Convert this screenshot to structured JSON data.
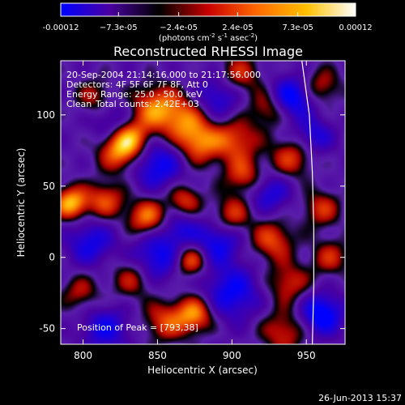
{
  "chart_data": {
    "type": "heatmap",
    "title": "Reconstructed RHESSI Image",
    "xlabel": "Heliocentric X (arcsec)",
    "ylabel": "Heliocentric Y (arcsec)",
    "xlim": [
      785,
      976
    ],
    "ylim": [
      -61,
      138
    ],
    "x_ticks": [
      800,
      850,
      900,
      950
    ],
    "y_ticks": [
      -50,
      0,
      50,
      100
    ],
    "colorbar": {
      "range": [
        -0.00012,
        0.00012
      ],
      "tick_labels": [
        "-0.00012",
        "−7.3e-05",
        "−2.4e-05",
        "2.4e-05",
        "7.3e-05",
        "0.00012"
      ],
      "tick_values": [
        -0.00012,
        -7.3e-05,
        -2.4e-05,
        2.4e-05,
        7.3e-05,
        0.00012
      ],
      "unit_base": "(photons cm",
      "unit_exp1": "-2",
      "unit_s": " s",
      "unit_exp2": "-1",
      "unit_asec": " asec",
      "unit_exp3": "-2",
      "unit_close": ")",
      "colors": [
        "#0000ff",
        "#4a00a0",
        "#000000",
        "#c80000",
        "#ff6a00",
        "#ffc000",
        "#ffffff"
      ]
    },
    "annotations": {
      "line1": "20-Sep-2004 21:14:16.000 to 21:17:56.000",
      "line2": "Detectors: 4F 5F 6F 7F 8F, Att 0",
      "line3": "Energy Range: 25.0 - 50.0 keV",
      "line4_a": "Clean",
      "line4_b": "Total counts: 2.42E+03",
      "peak": "Position of Peak = [793,38]"
    },
    "peak_position": [
      793,
      38
    ],
    "limb_curve": [
      [
        947,
        138
      ],
      [
        952,
        100
      ],
      [
        954,
        60
      ],
      [
        955,
        20
      ],
      [
        955,
        -20
      ],
      [
        954,
        -61
      ]
    ],
    "blobs": [
      {
        "x": 792,
        "y": 38,
        "v": 1.0,
        "s": 8
      },
      {
        "x": 825,
        "y": 75,
        "v": 0.85,
        "s": 10
      },
      {
        "x": 832,
        "y": 85,
        "v": 0.7,
        "s": 9
      },
      {
        "x": 848,
        "y": 105,
        "v": 0.75,
        "s": 11
      },
      {
        "x": 843,
        "y": 28,
        "v": 0.8,
        "s": 9
      },
      {
        "x": 815,
        "y": 40,
        "v": 0.65,
        "s": 9
      },
      {
        "x": 868,
        "y": 97,
        "v": 0.7,
        "s": 12
      },
      {
        "x": 878,
        "y": 80,
        "v": 0.7,
        "s": 10
      },
      {
        "x": 902,
        "y": 82,
        "v": 0.65,
        "s": 11
      },
      {
        "x": 905,
        "y": 128,
        "v": 0.55,
        "s": 10
      },
      {
        "x": 925,
        "y": 105,
        "v": 0.55,
        "s": 9
      },
      {
        "x": 940,
        "y": 70,
        "v": 0.6,
        "s": 10
      },
      {
        "x": 908,
        "y": 57,
        "v": 0.6,
        "s": 9
      },
      {
        "x": 868,
        "y": 40,
        "v": 0.6,
        "s": 8
      },
      {
        "x": 900,
        "y": 30,
        "v": 0.6,
        "s": 9
      },
      {
        "x": 872,
        "y": -2,
        "v": 0.8,
        "s": 8
      },
      {
        "x": 927,
        "y": 12,
        "v": 0.65,
        "s": 10
      },
      {
        "x": 960,
        "y": 34,
        "v": 0.55,
        "s": 9
      },
      {
        "x": 938,
        "y": -18,
        "v": 0.55,
        "s": 10
      },
      {
        "x": 833,
        "y": -15,
        "v": 0.5,
        "s": 10
      },
      {
        "x": 875,
        "y": -40,
        "v": 0.85,
        "s": 9
      },
      {
        "x": 855,
        "y": -45,
        "v": 0.6,
        "s": 10
      },
      {
        "x": 935,
        "y": -52,
        "v": 0.55,
        "s": 11
      },
      {
        "x": 966,
        "y": 0,
        "v": 0.5,
        "s": 9
      },
      {
        "x": 798,
        "y": -25,
        "v": 0.45,
        "s": 9
      },
      {
        "x": 808,
        "y": 112,
        "v": 0.45,
        "s": 9
      },
      {
        "x": 960,
        "y": 120,
        "v": 0.5,
        "s": 9
      },
      {
        "x": 805,
        "y": 10,
        "v": -0.6,
        "s": 11
      },
      {
        "x": 850,
        "y": 65,
        "v": -0.7,
        "s": 12
      },
      {
        "x": 890,
        "y": 112,
        "v": -0.6,
        "s": 11
      },
      {
        "x": 940,
        "y": 112,
        "v": -0.85,
        "s": 10
      },
      {
        "x": 850,
        "y": 0,
        "v": -0.7,
        "s": 12
      },
      {
        "x": 890,
        "y": 10,
        "v": -0.65,
        "s": 11
      },
      {
        "x": 900,
        "y": -25,
        "v": -0.7,
        "s": 13
      },
      {
        "x": 960,
        "y": -40,
        "v": -0.9,
        "s": 10
      },
      {
        "x": 815,
        "y": -50,
        "v": -0.6,
        "s": 11
      },
      {
        "x": 925,
        "y": 45,
        "v": -0.55,
        "s": 10
      },
      {
        "x": 820,
        "y": 95,
        "v": -0.5,
        "s": 10
      },
      {
        "x": 865,
        "y": 20,
        "v": -0.45,
        "s": 9
      },
      {
        "x": 955,
        "y": 85,
        "v": -0.55,
        "s": 9
      }
    ]
  },
  "footer": {
    "timestamp": "26-Jun-2013 15:37"
  }
}
